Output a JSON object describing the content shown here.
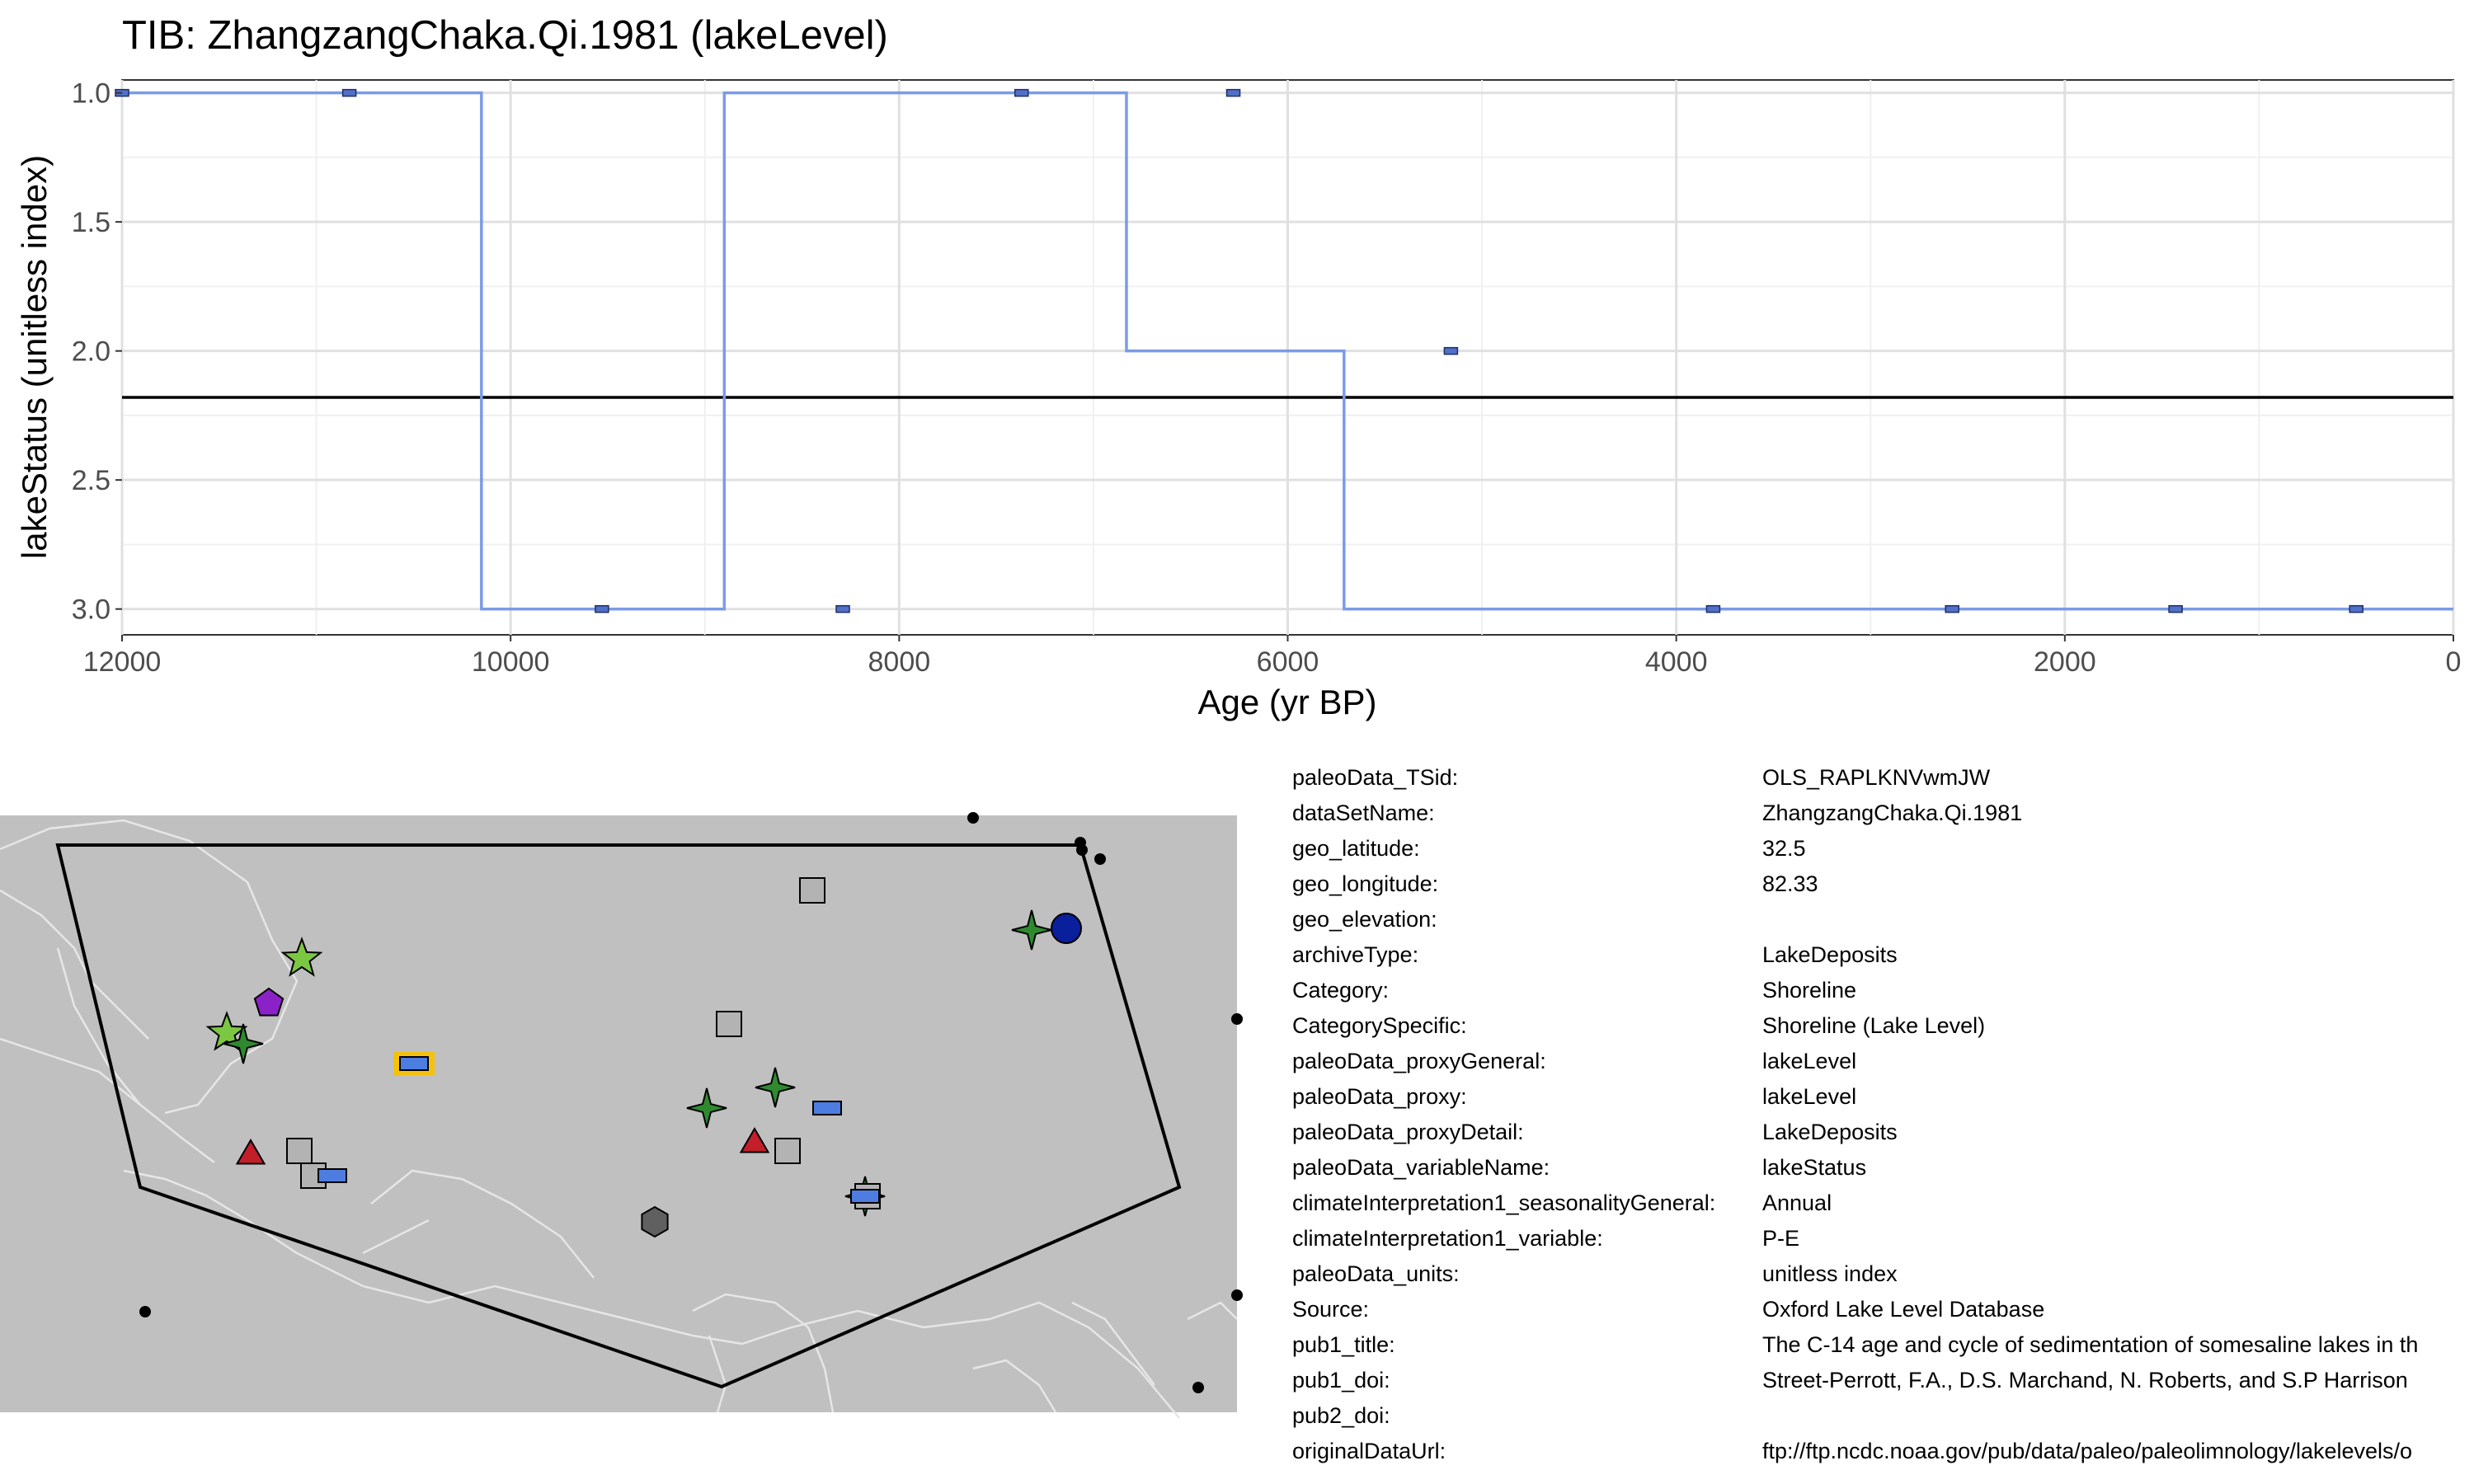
{
  "chart_data": {
    "type": "line",
    "title": "TIB: ZhangzangChaka.Qi.1981 (lakeLevel)",
    "xlabel": "Age (yr BP)",
    "ylabel": "lakeStatus (unitless index)",
    "xlim": [
      12000,
      0
    ],
    "ylim": [
      3.1,
      0.95
    ],
    "x_reversed": true,
    "y_reversed": true,
    "xticks": [
      12000,
      10000,
      8000,
      6000,
      4000,
      2000,
      0
    ],
    "xtick_labels": [
      "12000",
      "10000",
      "8000",
      "6000",
      "4000",
      "2000",
      "0"
    ],
    "yticks": [
      1.0,
      1.5,
      2.0,
      2.5,
      3.0
    ],
    "ytick_labels": [
      "1.0",
      "1.5",
      "2.0",
      "2.5",
      "3.0"
    ],
    "grid": true,
    "step_line": {
      "x": [
        12000,
        10150,
        10150,
        8900,
        8900,
        6830,
        6830,
        5710,
        5710,
        0
      ],
      "y": [
        1,
        1,
        3,
        3,
        1,
        1,
        2,
        2,
        3,
        3
      ]
    },
    "points": {
      "x": [
        12000,
        10830,
        9530,
        8290,
        7370,
        6280,
        5160,
        3810,
        2580,
        1430,
        500
      ],
      "y": [
        1,
        1,
        3,
        3,
        1,
        1,
        2,
        3,
        3,
        3,
        3
      ]
    },
    "reference_line_y": 2.18,
    "colors": {
      "line": "#7b9be6",
      "marker": "#5170c8",
      "reference": "#000000"
    }
  },
  "map": {
    "colors": {
      "background": "#c0c0c0",
      "border": "#e6e6e6",
      "polygon": "#000000"
    },
    "markers": [
      {
        "shape": "rect",
        "fill": "#4d7de0",
        "highlight": true
      },
      {
        "shape": "star5",
        "fill": "#7cc742"
      },
      {
        "shape": "star5",
        "fill": "#7cc742"
      },
      {
        "shape": "star4",
        "fill": "#2f8a2f"
      },
      {
        "shape": "star4",
        "fill": "#2f8a2f"
      },
      {
        "shape": "star4",
        "fill": "#2f8a2f"
      },
      {
        "shape": "star4",
        "fill": "#2f8a2f"
      },
      {
        "shape": "star4",
        "fill": "#2f8a2f"
      },
      {
        "shape": "pentagon",
        "fill": "#8b22c7"
      },
      {
        "shape": "triangle",
        "fill": "#c21f2a"
      },
      {
        "shape": "triangle",
        "fill": "#c21f2a"
      },
      {
        "shape": "square",
        "fill": "#b3b3b3"
      },
      {
        "shape": "square",
        "fill": "#b3b3b3"
      },
      {
        "shape": "square",
        "fill": "#b3b3b3"
      },
      {
        "shape": "square",
        "fill": "#b3b3b3"
      },
      {
        "shape": "square",
        "fill": "#b3b3b3"
      },
      {
        "shape": "square",
        "fill": "#b3b3b3"
      },
      {
        "shape": "rect",
        "fill": "#4d7de0"
      },
      {
        "shape": "rect",
        "fill": "#4d7de0"
      },
      {
        "shape": "rect",
        "fill": "#4d7de0"
      },
      {
        "shape": "circle",
        "fill": "#0a1f9c"
      },
      {
        "shape": "hexagon",
        "fill": "#606060"
      },
      {
        "shape": "dot",
        "fill": "#000000"
      },
      {
        "shape": "dot",
        "fill": "#000000"
      },
      {
        "shape": "dot",
        "fill": "#000000"
      },
      {
        "shape": "dot",
        "fill": "#000000"
      },
      {
        "shape": "dot",
        "fill": "#000000"
      },
      {
        "shape": "dot",
        "fill": "#000000"
      },
      {
        "shape": "dot",
        "fill": "#000000"
      },
      {
        "shape": "dot",
        "fill": "#000000"
      }
    ]
  },
  "metadata": [
    {
      "key": "paleoData_TSid:",
      "value": "OLS_RAPLKNVwmJW"
    },
    {
      "key": "dataSetName:",
      "value": "ZhangzangChaka.Qi.1981"
    },
    {
      "key": "geo_latitude:",
      "value": "32.5"
    },
    {
      "key": "geo_longitude:",
      "value": "82.33"
    },
    {
      "key": "geo_elevation:",
      "value": ""
    },
    {
      "key": "archiveType:",
      "value": "LakeDeposits"
    },
    {
      "key": "Category:",
      "value": "Shoreline"
    },
    {
      "key": "CategorySpecific:",
      "value": "Shoreline (Lake Level)"
    },
    {
      "key": "paleoData_proxyGeneral:",
      "value": "lakeLevel"
    },
    {
      "key": "paleoData_proxy:",
      "value": "lakeLevel"
    },
    {
      "key": "paleoData_proxyDetail:",
      "value": "LakeDeposits"
    },
    {
      "key": "paleoData_variableName:",
      "value": "lakeStatus"
    },
    {
      "key": "climateInterpretation1_seasonalityGeneral:",
      "value": "Annual"
    },
    {
      "key": "climateInterpretation1_variable:",
      "value": "P-E"
    },
    {
      "key": "paleoData_units:",
      "value": "unitless index"
    },
    {
      "key": "Source:",
      "value": "Oxford Lake Level Database"
    },
    {
      "key": "pub1_title:",
      "value": "The C-14 age and cycle of sedimentation of somesaline lakes in th"
    },
    {
      "key": "pub1_doi:",
      "value": "Street-Perrott, F.A., D.S. Marchand, N. Roberts, and S.P Harrison"
    },
    {
      "key": "pub2_doi:",
      "value": ""
    },
    {
      "key": "originalDataUrl:",
      "value": "ftp://ftp.ncdc.noaa.gov/pub/data/paleo/paleolimnology/lakelevels/o"
    }
  ]
}
